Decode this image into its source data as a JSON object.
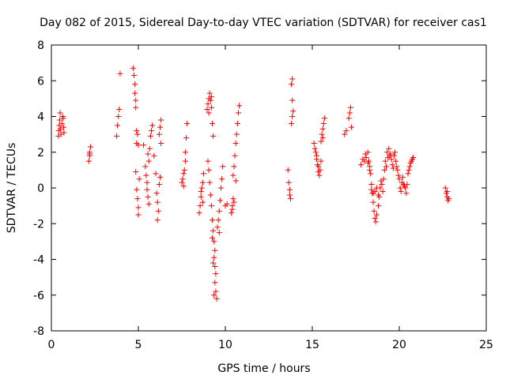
{
  "chart_data": {
    "type": "scatter",
    "title": "Day 082 of 2015, Sidereal Day-to-day VTEC variation (SDTVAR) for receiver cas1",
    "xlabel": "GPS time / hours",
    "ylabel": "SDTVAR / TECUs",
    "xlim": [
      0,
      25
    ],
    "ylim": [
      -8,
      8
    ],
    "xticks": [
      "0",
      "5",
      "10",
      "15",
      "20",
      "25"
    ],
    "yticks": [
      "-8",
      "-6",
      "-4",
      "-2",
      "0",
      "2",
      "4",
      "6",
      "8"
    ],
    "grid": false,
    "marker": "+",
    "color": "#ff0000",
    "series": [
      {
        "name": "SDTVAR",
        "points": [
          [
            0.4,
            2.9
          ],
          [
            0.42,
            3.2
          ],
          [
            0.45,
            3.5
          ],
          [
            0.48,
            3.8
          ],
          [
            0.5,
            4.2
          ],
          [
            0.52,
            3.3
          ],
          [
            0.55,
            3.0
          ],
          [
            0.6,
            3.6
          ],
          [
            0.65,
            4.0
          ],
          [
            0.7,
            3.4
          ],
          [
            0.72,
            3.1
          ],
          [
            0.68,
            3.9
          ],
          [
            2.15,
            1.5
          ],
          [
            2.2,
            1.8
          ],
          [
            2.2,
            2.0
          ],
          [
            2.25,
            2.3
          ],
          [
            2.2,
            1.9
          ],
          [
            3.75,
            2.9
          ],
          [
            3.8,
            3.5
          ],
          [
            3.85,
            4.0
          ],
          [
            3.9,
            4.4
          ],
          [
            3.95,
            6.4
          ],
          [
            4.7,
            6.7
          ],
          [
            4.75,
            6.3
          ],
          [
            4.8,
            5.8
          ],
          [
            4.8,
            5.3
          ],
          [
            4.85,
            4.9
          ],
          [
            4.85,
            4.5
          ],
          [
            4.9,
            3.2
          ],
          [
            4.95,
            3.0
          ],
          [
            4.9,
            2.5
          ],
          [
            5.0,
            2.4
          ],
          [
            4.85,
            0.9
          ],
          [
            4.9,
            -0.1
          ],
          [
            4.95,
            -0.6
          ],
          [
            5.0,
            -1.1
          ],
          [
            5.0,
            -1.5
          ],
          [
            5.05,
            0.5
          ],
          [
            5.3,
            2.4
          ],
          [
            5.4,
            1.2
          ],
          [
            5.45,
            0.7
          ],
          [
            5.5,
            -0.1
          ],
          [
            5.55,
            -0.5
          ],
          [
            5.6,
            -0.9
          ],
          [
            5.5,
            0.3
          ],
          [
            5.6,
            1.5
          ],
          [
            5.65,
            2.2
          ],
          [
            5.7,
            2.9
          ],
          [
            5.75,
            3.2
          ],
          [
            5.8,
            3.5
          ],
          [
            5.55,
            1.9
          ],
          [
            5.9,
            1.8
          ],
          [
            6.0,
            0.8
          ],
          [
            6.05,
            -0.3
          ],
          [
            6.1,
            -0.8
          ],
          [
            6.15,
            -1.3
          ],
          [
            6.1,
            -1.8
          ],
          [
            6.2,
            0.2
          ],
          [
            6.25,
            0.6
          ],
          [
            6.2,
            3.0
          ],
          [
            6.25,
            3.4
          ],
          [
            6.3,
            3.8
          ],
          [
            6.3,
            2.5
          ],
          [
            7.5,
            0.3
          ],
          [
            7.6,
            0.8
          ],
          [
            7.7,
            1.5
          ],
          [
            7.7,
            2.0
          ],
          [
            7.75,
            2.8
          ],
          [
            7.8,
            3.6
          ],
          [
            7.55,
            0.5
          ],
          [
            7.6,
            0.1
          ],
          [
            7.65,
            1.0
          ],
          [
            8.5,
            -1.4
          ],
          [
            8.55,
            -1.0
          ],
          [
            8.6,
            -0.5
          ],
          [
            8.65,
            0.0
          ],
          [
            8.7,
            0.3
          ],
          [
            8.75,
            0.8
          ],
          [
            8.6,
            -0.2
          ],
          [
            8.7,
            -0.8
          ],
          [
            8.95,
            4.4
          ],
          [
            9.0,
            4.7
          ],
          [
            9.05,
            5.0
          ],
          [
            9.1,
            5.3
          ],
          [
            9.15,
            4.9
          ],
          [
            9.2,
            4.5
          ],
          [
            9.25,
            3.6
          ],
          [
            9.3,
            2.9
          ],
          [
            9.05,
            4.2
          ],
          [
            9.2,
            5.1
          ],
          [
            9.0,
            1.5
          ],
          [
            9.05,
            1.0
          ],
          [
            9.1,
            0.3
          ],
          [
            9.15,
            -0.4
          ],
          [
            9.2,
            -1.0
          ],
          [
            9.25,
            -1.8
          ],
          [
            9.3,
            -2.4
          ],
          [
            9.35,
            -3.0
          ],
          [
            9.4,
            -3.5
          ],
          [
            9.35,
            -3.9
          ],
          [
            9.4,
            -4.4
          ],
          [
            9.45,
            -4.8
          ],
          [
            9.4,
            -5.3
          ],
          [
            9.45,
            -5.8
          ],
          [
            9.5,
            -6.2
          ],
          [
            9.35,
            -6.0
          ],
          [
            9.25,
            -2.8
          ],
          [
            9.3,
            -4.2
          ],
          [
            9.55,
            -2.2
          ],
          [
            9.6,
            -1.8
          ],
          [
            9.65,
            -1.3
          ],
          [
            9.7,
            -0.7
          ],
          [
            9.75,
            0.0
          ],
          [
            9.8,
            0.5
          ],
          [
            9.85,
            1.2
          ],
          [
            9.65,
            -2.5
          ],
          [
            10.0,
            -1.0
          ],
          [
            10.1,
            -0.9
          ],
          [
            10.35,
            -1.4
          ],
          [
            10.4,
            -1.0
          ],
          [
            10.45,
            -0.6
          ],
          [
            10.5,
            -0.8
          ],
          [
            10.4,
            -1.2
          ],
          [
            10.45,
            0.7
          ],
          [
            10.5,
            1.2
          ],
          [
            10.55,
            1.8
          ],
          [
            10.6,
            2.5
          ],
          [
            10.65,
            3.0
          ],
          [
            10.7,
            3.6
          ],
          [
            10.75,
            4.2
          ],
          [
            10.8,
            4.6
          ],
          [
            10.6,
            0.4
          ],
          [
            13.6,
            1.0
          ],
          [
            13.65,
            0.3
          ],
          [
            13.7,
            -0.1
          ],
          [
            13.75,
            -0.6
          ],
          [
            13.7,
            -0.4
          ],
          [
            13.8,
            3.6
          ],
          [
            13.85,
            4.0
          ],
          [
            13.9,
            4.3
          ],
          [
            13.85,
            4.9
          ],
          [
            13.8,
            5.8
          ],
          [
            13.85,
            6.1
          ],
          [
            15.1,
            2.5
          ],
          [
            15.15,
            2.2
          ],
          [
            15.2,
            2.0
          ],
          [
            15.25,
            1.6
          ],
          [
            15.3,
            1.3
          ],
          [
            15.35,
            0.9
          ],
          [
            15.4,
            0.7
          ],
          [
            15.45,
            1.0
          ],
          [
            15.5,
            1.5
          ],
          [
            15.25,
            1.8
          ],
          [
            15.35,
            1.2
          ],
          [
            15.5,
            2.6
          ],
          [
            15.55,
            3.0
          ],
          [
            15.6,
            3.3
          ],
          [
            15.65,
            3.6
          ],
          [
            15.7,
            3.9
          ],
          [
            15.6,
            2.8
          ],
          [
            16.85,
            3.0
          ],
          [
            16.95,
            3.2
          ],
          [
            17.1,
            3.9
          ],
          [
            17.15,
            4.2
          ],
          [
            17.2,
            4.5
          ],
          [
            17.25,
            3.4
          ],
          [
            17.8,
            1.3
          ],
          [
            17.9,
            1.6
          ],
          [
            18.0,
            1.5
          ],
          [
            18.1,
            1.7
          ],
          [
            18.2,
            2.0
          ],
          [
            18.25,
            1.5
          ],
          [
            18.3,
            1.2
          ],
          [
            18.35,
            0.8
          ],
          [
            18.4,
            0.2
          ],
          [
            18.45,
            -0.3
          ],
          [
            18.5,
            -0.8
          ],
          [
            18.55,
            -1.3
          ],
          [
            18.6,
            -1.7
          ],
          [
            18.65,
            -1.9
          ],
          [
            18.7,
            -1.5
          ],
          [
            18.8,
            -1.0
          ],
          [
            18.85,
            -0.5
          ],
          [
            18.9,
            0.0
          ],
          [
            18.95,
            0.4
          ],
          [
            19.0,
            0.2
          ],
          [
            19.05,
            -0.2
          ],
          [
            19.1,
            0.5
          ],
          [
            19.15,
            1.0
          ],
          [
            19.2,
            1.5
          ],
          [
            19.3,
            2.0
          ],
          [
            19.4,
            2.2
          ],
          [
            19.5,
            1.9
          ],
          [
            19.55,
            1.6
          ],
          [
            19.6,
            1.3
          ],
          [
            19.7,
            1.8
          ],
          [
            19.8,
            1.5
          ],
          [
            19.9,
            1.0
          ],
          [
            20.0,
            0.5
          ],
          [
            20.05,
            0.0
          ],
          [
            20.1,
            -0.2
          ],
          [
            20.15,
            0.3
          ],
          [
            20.2,
            0.6
          ],
          [
            20.3,
            0.1
          ],
          [
            20.4,
            -0.3
          ],
          [
            20.45,
            0.2
          ],
          [
            20.5,
            0.8
          ],
          [
            20.6,
            1.2
          ],
          [
            20.7,
            1.5
          ],
          [
            20.8,
            1.7
          ],
          [
            18.4,
            -0.1
          ],
          [
            18.5,
            -0.3
          ],
          [
            18.6,
            -0.2
          ],
          [
            18.7,
            0.0
          ],
          [
            18.8,
            -0.4
          ],
          [
            18.3,
            1.0
          ],
          [
            18.2,
            1.4
          ],
          [
            18.05,
            1.9
          ],
          [
            19.25,
            1.2
          ],
          [
            19.35,
            1.7
          ],
          [
            19.45,
            1.8
          ],
          [
            19.65,
            1.1
          ],
          [
            19.75,
            2.0
          ],
          [
            19.85,
            1.2
          ],
          [
            19.95,
            0.7
          ],
          [
            20.25,
            0.2
          ],
          [
            20.35,
            0.0
          ],
          [
            20.55,
            1.0
          ],
          [
            20.65,
            1.4
          ],
          [
            20.75,
            1.6
          ],
          [
            22.65,
            0.0
          ],
          [
            22.7,
            -0.3
          ],
          [
            22.75,
            -0.5
          ],
          [
            22.8,
            -0.7
          ],
          [
            22.85,
            -0.6
          ],
          [
            22.75,
            -0.2
          ]
        ]
      }
    ]
  }
}
